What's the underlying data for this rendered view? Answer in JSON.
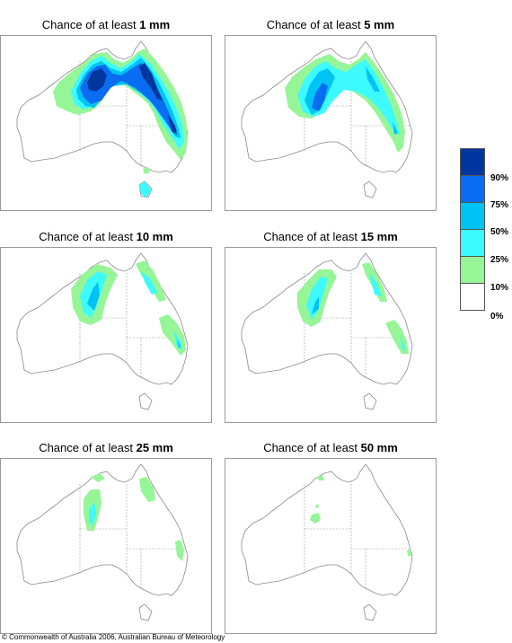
{
  "panels": [
    {
      "id": "p1",
      "title_prefix": "Chance of at least",
      "title_value": "1 mm"
    },
    {
      "id": "p2",
      "title_prefix": "Chance of at least",
      "title_value": "5 mm"
    },
    {
      "id": "p3",
      "title_prefix": "Chance of at least",
      "title_value": "10 mm"
    },
    {
      "id": "p4",
      "title_prefix": "Chance of at least",
      "title_value": "15 mm"
    },
    {
      "id": "p5",
      "title_prefix": "Chance of at least",
      "title_value": "25 mm"
    },
    {
      "id": "p6",
      "title_prefix": "Chance of at least",
      "title_value": "50 mm"
    }
  ],
  "legend": {
    "bins": [
      {
        "color": "#00379f"
      },
      {
        "color": "#0a6cf0"
      },
      {
        "color": "#00c3f5"
      },
      {
        "color": "#3cfaff"
      },
      {
        "color": "#96f596"
      },
      {
        "color": "#ffffff"
      }
    ],
    "labels": [
      "90%",
      "75%",
      "50%",
      "25%",
      "10%",
      "0%"
    ]
  },
  "copyright": "© Commonwealth of Australia 2006, Australian Bureau of Meteorology"
}
